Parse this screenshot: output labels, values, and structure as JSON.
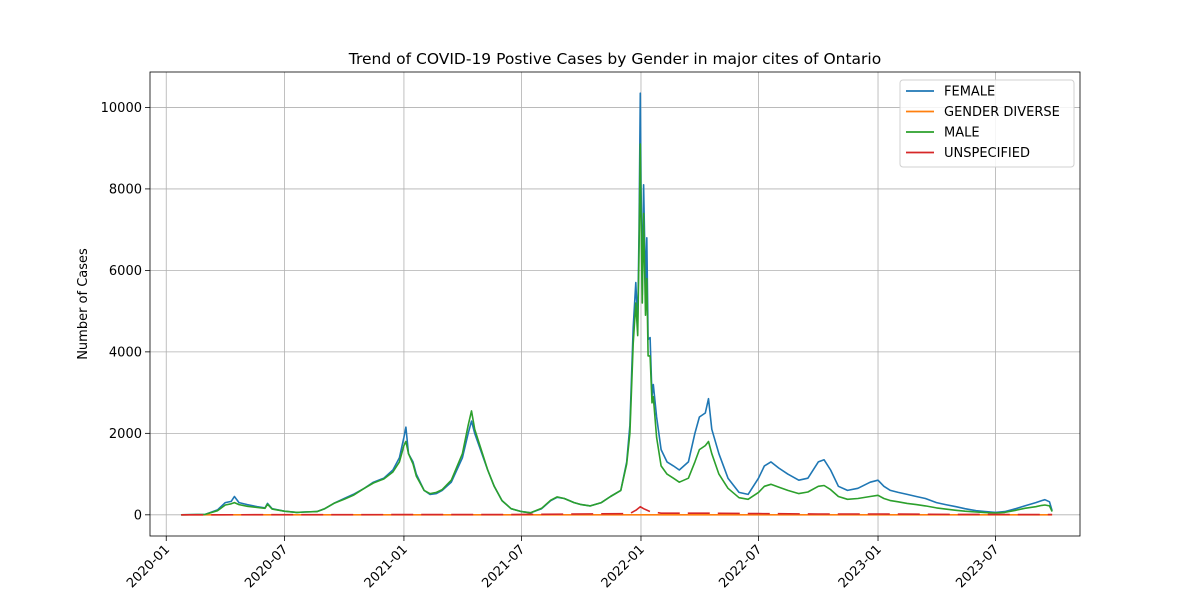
{
  "chart_data": {
    "type": "line",
    "title": "Trend of COVID-19 Postive Cases by Gender in major cites of Ontario",
    "xlabel": "",
    "ylabel": "Number of Cases",
    "x_axis_type": "date",
    "xlim": [
      "2019-12-07",
      "2023-11-08"
    ],
    "ylim": [
      -520,
      10870
    ],
    "x_ticks": [
      "2020-01",
      "2020-07",
      "2021-01",
      "2021-07",
      "2022-01",
      "2022-07",
      "2023-01",
      "2023-07"
    ],
    "y_ticks": [
      0,
      2000,
      4000,
      6000,
      8000,
      10000
    ],
    "grid": true,
    "legend_position": "top-right",
    "x_tick_rotation": 45,
    "series": [
      {
        "name": "FEMALE",
        "color": "#1f77b4",
        "points": [
          [
            "2020-01-24",
            0
          ],
          [
            "2020-03-01",
            10
          ],
          [
            "2020-03-20",
            120
          ],
          [
            "2020-04-01",
            300
          ],
          [
            "2020-04-10",
            330
          ],
          [
            "2020-04-15",
            450
          ],
          [
            "2020-04-22",
            300
          ],
          [
            "2020-05-05",
            250
          ],
          [
            "2020-05-20",
            200
          ],
          [
            "2020-06-01",
            170
          ],
          [
            "2020-06-05",
            280
          ],
          [
            "2020-06-12",
            150
          ],
          [
            "2020-07-01",
            90
          ],
          [
            "2020-07-20",
            60
          ],
          [
            "2020-08-01",
            70
          ],
          [
            "2020-08-20",
            80
          ],
          [
            "2020-09-01",
            150
          ],
          [
            "2020-09-15",
            280
          ],
          [
            "2020-10-01",
            400
          ],
          [
            "2020-10-15",
            500
          ],
          [
            "2020-11-01",
            650
          ],
          [
            "2020-11-15",
            800
          ],
          [
            "2020-12-01",
            900
          ],
          [
            "2020-12-15",
            1100
          ],
          [
            "2020-12-25",
            1400
          ],
          [
            "2021-01-01",
            1900
          ],
          [
            "2021-01-04",
            2150
          ],
          [
            "2021-01-08",
            1500
          ],
          [
            "2021-01-15",
            1300
          ],
          [
            "2021-01-20",
            1000
          ],
          [
            "2021-02-01",
            600
          ],
          [
            "2021-02-10",
            500
          ],
          [
            "2021-02-20",
            520
          ],
          [
            "2021-03-01",
            600
          ],
          [
            "2021-03-15",
            800
          ],
          [
            "2021-04-01",
            1400
          ],
          [
            "2021-04-10",
            2000
          ],
          [
            "2021-04-15",
            2300
          ],
          [
            "2021-04-20",
            2000
          ],
          [
            "2021-05-01",
            1500
          ],
          [
            "2021-05-10",
            1100
          ],
          [
            "2021-05-20",
            700
          ],
          [
            "2021-06-01",
            350
          ],
          [
            "2021-06-15",
            150
          ],
          [
            "2021-07-01",
            80
          ],
          [
            "2021-07-15",
            50
          ],
          [
            "2021-08-01",
            150
          ],
          [
            "2021-08-15",
            350
          ],
          [
            "2021-08-25",
            430
          ],
          [
            "2021-09-05",
            400
          ],
          [
            "2021-09-20",
            300
          ],
          [
            "2021-10-01",
            250
          ],
          [
            "2021-10-15",
            220
          ],
          [
            "2021-11-01",
            300
          ],
          [
            "2021-11-15",
            450
          ],
          [
            "2021-12-01",
            600
          ],
          [
            "2021-12-10",
            1300
          ],
          [
            "2021-12-15",
            2200
          ],
          [
            "2021-12-20",
            4600
          ],
          [
            "2021-12-24",
            5700
          ],
          [
            "2021-12-27",
            4700
          ],
          [
            "2021-12-29",
            6900
          ],
          [
            "2021-12-31",
            10350
          ],
          [
            "2022-01-01",
            8200
          ],
          [
            "2022-01-03",
            5400
          ],
          [
            "2022-01-05",
            8100
          ],
          [
            "2022-01-08",
            5600
          ],
          [
            "2022-01-10",
            6800
          ],
          [
            "2022-01-12",
            4300
          ],
          [
            "2022-01-15",
            4350
          ],
          [
            "2022-01-18",
            2900
          ],
          [
            "2022-01-20",
            3200
          ],
          [
            "2022-01-25",
            2400
          ],
          [
            "2022-02-01",
            1600
          ],
          [
            "2022-02-10",
            1300
          ],
          [
            "2022-02-20",
            1200
          ],
          [
            "2022-03-01",
            1100
          ],
          [
            "2022-03-15",
            1300
          ],
          [
            "2022-03-25",
            2000
          ],
          [
            "2022-04-01",
            2400
          ],
          [
            "2022-04-10",
            2500
          ],
          [
            "2022-04-15",
            2850
          ],
          [
            "2022-04-20",
            2100
          ],
          [
            "2022-05-01",
            1500
          ],
          [
            "2022-05-15",
            900
          ],
          [
            "2022-06-01",
            550
          ],
          [
            "2022-06-15",
            500
          ],
          [
            "2022-07-01",
            900
          ],
          [
            "2022-07-10",
            1200
          ],
          [
            "2022-07-20",
            1300
          ],
          [
            "2022-08-01",
            1150
          ],
          [
            "2022-08-15",
            1000
          ],
          [
            "2022-09-01",
            850
          ],
          [
            "2022-09-15",
            900
          ],
          [
            "2022-10-01",
            1300
          ],
          [
            "2022-10-10",
            1350
          ],
          [
            "2022-10-20",
            1100
          ],
          [
            "2022-11-01",
            700
          ],
          [
            "2022-11-15",
            600
          ],
          [
            "2022-12-01",
            650
          ],
          [
            "2022-12-20",
            800
          ],
          [
            "2023-01-01",
            850
          ],
          [
            "2023-01-10",
            700
          ],
          [
            "2023-01-20",
            600
          ],
          [
            "2023-02-01",
            550
          ],
          [
            "2023-02-15",
            500
          ],
          [
            "2023-03-01",
            450
          ],
          [
            "2023-03-15",
            400
          ],
          [
            "2023-04-01",
            300
          ],
          [
            "2023-04-15",
            250
          ],
          [
            "2023-05-01",
            200
          ],
          [
            "2023-05-15",
            150
          ],
          [
            "2023-06-01",
            100
          ],
          [
            "2023-06-15",
            80
          ],
          [
            "2023-07-01",
            60
          ],
          [
            "2023-07-15",
            80
          ],
          [
            "2023-08-01",
            150
          ],
          [
            "2023-08-15",
            220
          ],
          [
            "2023-09-01",
            300
          ],
          [
            "2023-09-10",
            350
          ],
          [
            "2023-09-15",
            370
          ],
          [
            "2023-09-22",
            320
          ],
          [
            "2023-09-26",
            100
          ]
        ]
      },
      {
        "name": "GENDER DIVERSE",
        "color": "#ff7f0e",
        "points": [
          [
            "2020-01-24",
            0
          ],
          [
            "2021-01-01",
            0
          ],
          [
            "2022-01-01",
            0
          ],
          [
            "2023-01-01",
            0
          ],
          [
            "2023-09-26",
            0
          ]
        ]
      },
      {
        "name": "MALE",
        "color": "#2ca02c",
        "points": [
          [
            "2020-01-24",
            0
          ],
          [
            "2020-03-01",
            10
          ],
          [
            "2020-03-20",
            100
          ],
          [
            "2020-04-01",
            240
          ],
          [
            "2020-04-10",
            270
          ],
          [
            "2020-04-15",
            300
          ],
          [
            "2020-04-22",
            250
          ],
          [
            "2020-05-05",
            210
          ],
          [
            "2020-05-20",
            180
          ],
          [
            "2020-06-01",
            160
          ],
          [
            "2020-06-05",
            260
          ],
          [
            "2020-06-12",
            140
          ],
          [
            "2020-07-01",
            90
          ],
          [
            "2020-07-20",
            60
          ],
          [
            "2020-08-01",
            70
          ],
          [
            "2020-08-20",
            80
          ],
          [
            "2020-09-01",
            150
          ],
          [
            "2020-09-15",
            280
          ],
          [
            "2020-10-01",
            380
          ],
          [
            "2020-10-15",
            480
          ],
          [
            "2020-11-01",
            650
          ],
          [
            "2020-11-15",
            780
          ],
          [
            "2020-12-01",
            880
          ],
          [
            "2020-12-15",
            1050
          ],
          [
            "2020-12-25",
            1300
          ],
          [
            "2021-01-01",
            1700
          ],
          [
            "2021-01-04",
            1800
          ],
          [
            "2021-01-08",
            1500
          ],
          [
            "2021-01-15",
            1250
          ],
          [
            "2021-01-20",
            950
          ],
          [
            "2021-02-01",
            600
          ],
          [
            "2021-02-10",
            520
          ],
          [
            "2021-02-20",
            550
          ],
          [
            "2021-03-01",
            620
          ],
          [
            "2021-03-15",
            850
          ],
          [
            "2021-04-01",
            1500
          ],
          [
            "2021-04-10",
            2200
          ],
          [
            "2021-04-15",
            2550
          ],
          [
            "2021-04-20",
            2100
          ],
          [
            "2021-05-01",
            1550
          ],
          [
            "2021-05-10",
            1100
          ],
          [
            "2021-05-20",
            700
          ],
          [
            "2021-06-01",
            350
          ],
          [
            "2021-06-15",
            150
          ],
          [
            "2021-07-01",
            80
          ],
          [
            "2021-07-15",
            50
          ],
          [
            "2021-08-01",
            160
          ],
          [
            "2021-08-15",
            360
          ],
          [
            "2021-08-25",
            440
          ],
          [
            "2021-09-05",
            400
          ],
          [
            "2021-09-20",
            300
          ],
          [
            "2021-10-01",
            250
          ],
          [
            "2021-10-15",
            220
          ],
          [
            "2021-11-01",
            300
          ],
          [
            "2021-11-15",
            450
          ],
          [
            "2021-12-01",
            600
          ],
          [
            "2021-12-10",
            1250
          ],
          [
            "2021-12-15",
            2000
          ],
          [
            "2021-12-20",
            4200
          ],
          [
            "2021-12-24",
            5200
          ],
          [
            "2021-12-27",
            4400
          ],
          [
            "2021-12-29",
            6400
          ],
          [
            "2021-12-31",
            9100
          ],
          [
            "2022-01-01",
            7400
          ],
          [
            "2022-01-03",
            5200
          ],
          [
            "2022-01-05",
            7400
          ],
          [
            "2022-01-08",
            4900
          ],
          [
            "2022-01-10",
            5800
          ],
          [
            "2022-01-12",
            3900
          ],
          [
            "2022-01-15",
            3900
          ],
          [
            "2022-01-18",
            2750
          ],
          [
            "2022-01-20",
            2900
          ],
          [
            "2022-01-25",
            1900
          ],
          [
            "2022-02-01",
            1200
          ],
          [
            "2022-02-10",
            1000
          ],
          [
            "2022-02-20",
            900
          ],
          [
            "2022-03-01",
            800
          ],
          [
            "2022-03-15",
            900
          ],
          [
            "2022-03-25",
            1300
          ],
          [
            "2022-04-01",
            1600
          ],
          [
            "2022-04-10",
            1700
          ],
          [
            "2022-04-15",
            1800
          ],
          [
            "2022-04-20",
            1500
          ],
          [
            "2022-05-01",
            1000
          ],
          [
            "2022-05-15",
            650
          ],
          [
            "2022-06-01",
            420
          ],
          [
            "2022-06-15",
            380
          ],
          [
            "2022-07-01",
            550
          ],
          [
            "2022-07-10",
            700
          ],
          [
            "2022-07-20",
            750
          ],
          [
            "2022-08-01",
            680
          ],
          [
            "2022-08-15",
            600
          ],
          [
            "2022-09-01",
            520
          ],
          [
            "2022-09-15",
            560
          ],
          [
            "2022-10-01",
            700
          ],
          [
            "2022-10-10",
            720
          ],
          [
            "2022-10-20",
            620
          ],
          [
            "2022-11-01",
            450
          ],
          [
            "2022-11-15",
            380
          ],
          [
            "2022-12-01",
            400
          ],
          [
            "2022-12-20",
            450
          ],
          [
            "2023-01-01",
            480
          ],
          [
            "2023-01-10",
            400
          ],
          [
            "2023-01-20",
            350
          ],
          [
            "2023-02-01",
            320
          ],
          [
            "2023-02-15",
            280
          ],
          [
            "2023-03-01",
            250
          ],
          [
            "2023-03-15",
            220
          ],
          [
            "2023-04-01",
            170
          ],
          [
            "2023-04-15",
            140
          ],
          [
            "2023-05-01",
            110
          ],
          [
            "2023-05-15",
            90
          ],
          [
            "2023-06-01",
            70
          ],
          [
            "2023-06-15",
            55
          ],
          [
            "2023-07-01",
            45
          ],
          [
            "2023-07-15",
            60
          ],
          [
            "2023-08-01",
            110
          ],
          [
            "2023-08-15",
            160
          ],
          [
            "2023-09-01",
            200
          ],
          [
            "2023-09-10",
            230
          ],
          [
            "2023-09-15",
            240
          ],
          [
            "2023-09-22",
            220
          ],
          [
            "2023-09-26",
            80
          ]
        ]
      },
      {
        "name": "UNSPECIFIED",
        "color": "#d62728",
        "points": [
          [
            "2020-01-24",
            0
          ],
          [
            "2021-01-01",
            5
          ],
          [
            "2021-06-01",
            5
          ],
          [
            "2021-12-15",
            30
          ],
          [
            "2021-12-25",
            120
          ],
          [
            "2021-12-31",
            200
          ],
          [
            "2022-01-05",
            150
          ],
          [
            "2022-01-15",
            80
          ],
          [
            "2022-02-01",
            40
          ],
          [
            "2022-04-15",
            40
          ],
          [
            "2022-07-01",
            30
          ],
          [
            "2022-10-01",
            20
          ],
          [
            "2023-01-01",
            20
          ],
          [
            "2023-05-01",
            10
          ],
          [
            "2023-09-26",
            5
          ]
        ]
      }
    ]
  }
}
